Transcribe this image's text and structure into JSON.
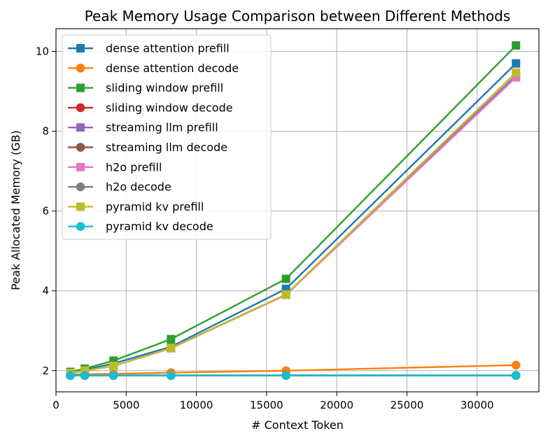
{
  "chart_data": {
    "type": "line",
    "title": "Peak Memory Usage Comparison between Different Methods",
    "xlabel": "# Context Token",
    "ylabel": "Peak Allocated Memory (GB)",
    "xlim": [
      0,
      34400
    ],
    "ylim": [
      1.47,
      10.57
    ],
    "xticks": [
      0,
      5000,
      10000,
      15000,
      20000,
      25000,
      30000
    ],
    "yticks": [
      2,
      4,
      6,
      8,
      10
    ],
    "grid": true,
    "legend_position": "top-left",
    "x": [
      1024,
      2048,
      4096,
      8192,
      16384,
      32768
    ],
    "series": [
      {
        "name": "dense attention prefill",
        "color": "#1f77b4",
        "marker": "square",
        "values": [
          1.95,
          2.02,
          2.18,
          2.6,
          4.05,
          9.7
        ]
      },
      {
        "name": "dense attention decode",
        "color": "#ff7f0e",
        "marker": "circle",
        "values": [
          1.9,
          1.91,
          1.92,
          1.95,
          2.0,
          2.14
        ]
      },
      {
        "name": "sliding window prefill",
        "color": "#2ca02c",
        "marker": "square",
        "values": [
          1.97,
          2.05,
          2.25,
          2.79,
          4.3,
          10.15
        ]
      },
      {
        "name": "sliding window decode",
        "color": "#d62728",
        "marker": "circle",
        "values": [
          1.88,
          1.88,
          1.88,
          1.88,
          1.88,
          1.88
        ]
      },
      {
        "name": "streaming llm prefill",
        "color": "#9467bd",
        "marker": "square",
        "values": [
          1.94,
          2.0,
          2.12,
          2.57,
          3.9,
          9.4
        ]
      },
      {
        "name": "streaming llm decode",
        "color": "#8c564b",
        "marker": "circle",
        "values": [
          1.88,
          1.88,
          1.88,
          1.88,
          1.88,
          1.88
        ]
      },
      {
        "name": "h2o prefill",
        "color": "#e377c2",
        "marker": "square",
        "values": [
          1.94,
          2.0,
          2.12,
          2.56,
          3.9,
          9.35
        ]
      },
      {
        "name": "h2o decode",
        "color": "#7f7f7f",
        "marker": "circle",
        "values": [
          1.88,
          1.88,
          1.88,
          1.88,
          1.88,
          1.88
        ]
      },
      {
        "name": "pyramid kv prefill",
        "color": "#bcbd22",
        "marker": "square",
        "values": [
          1.94,
          2.0,
          2.12,
          2.57,
          3.91,
          9.47
        ]
      },
      {
        "name": "pyramid kv decode",
        "color": "#17becf",
        "marker": "circle",
        "values": [
          1.88,
          1.88,
          1.88,
          1.88,
          1.88,
          1.88
        ]
      }
    ]
  }
}
